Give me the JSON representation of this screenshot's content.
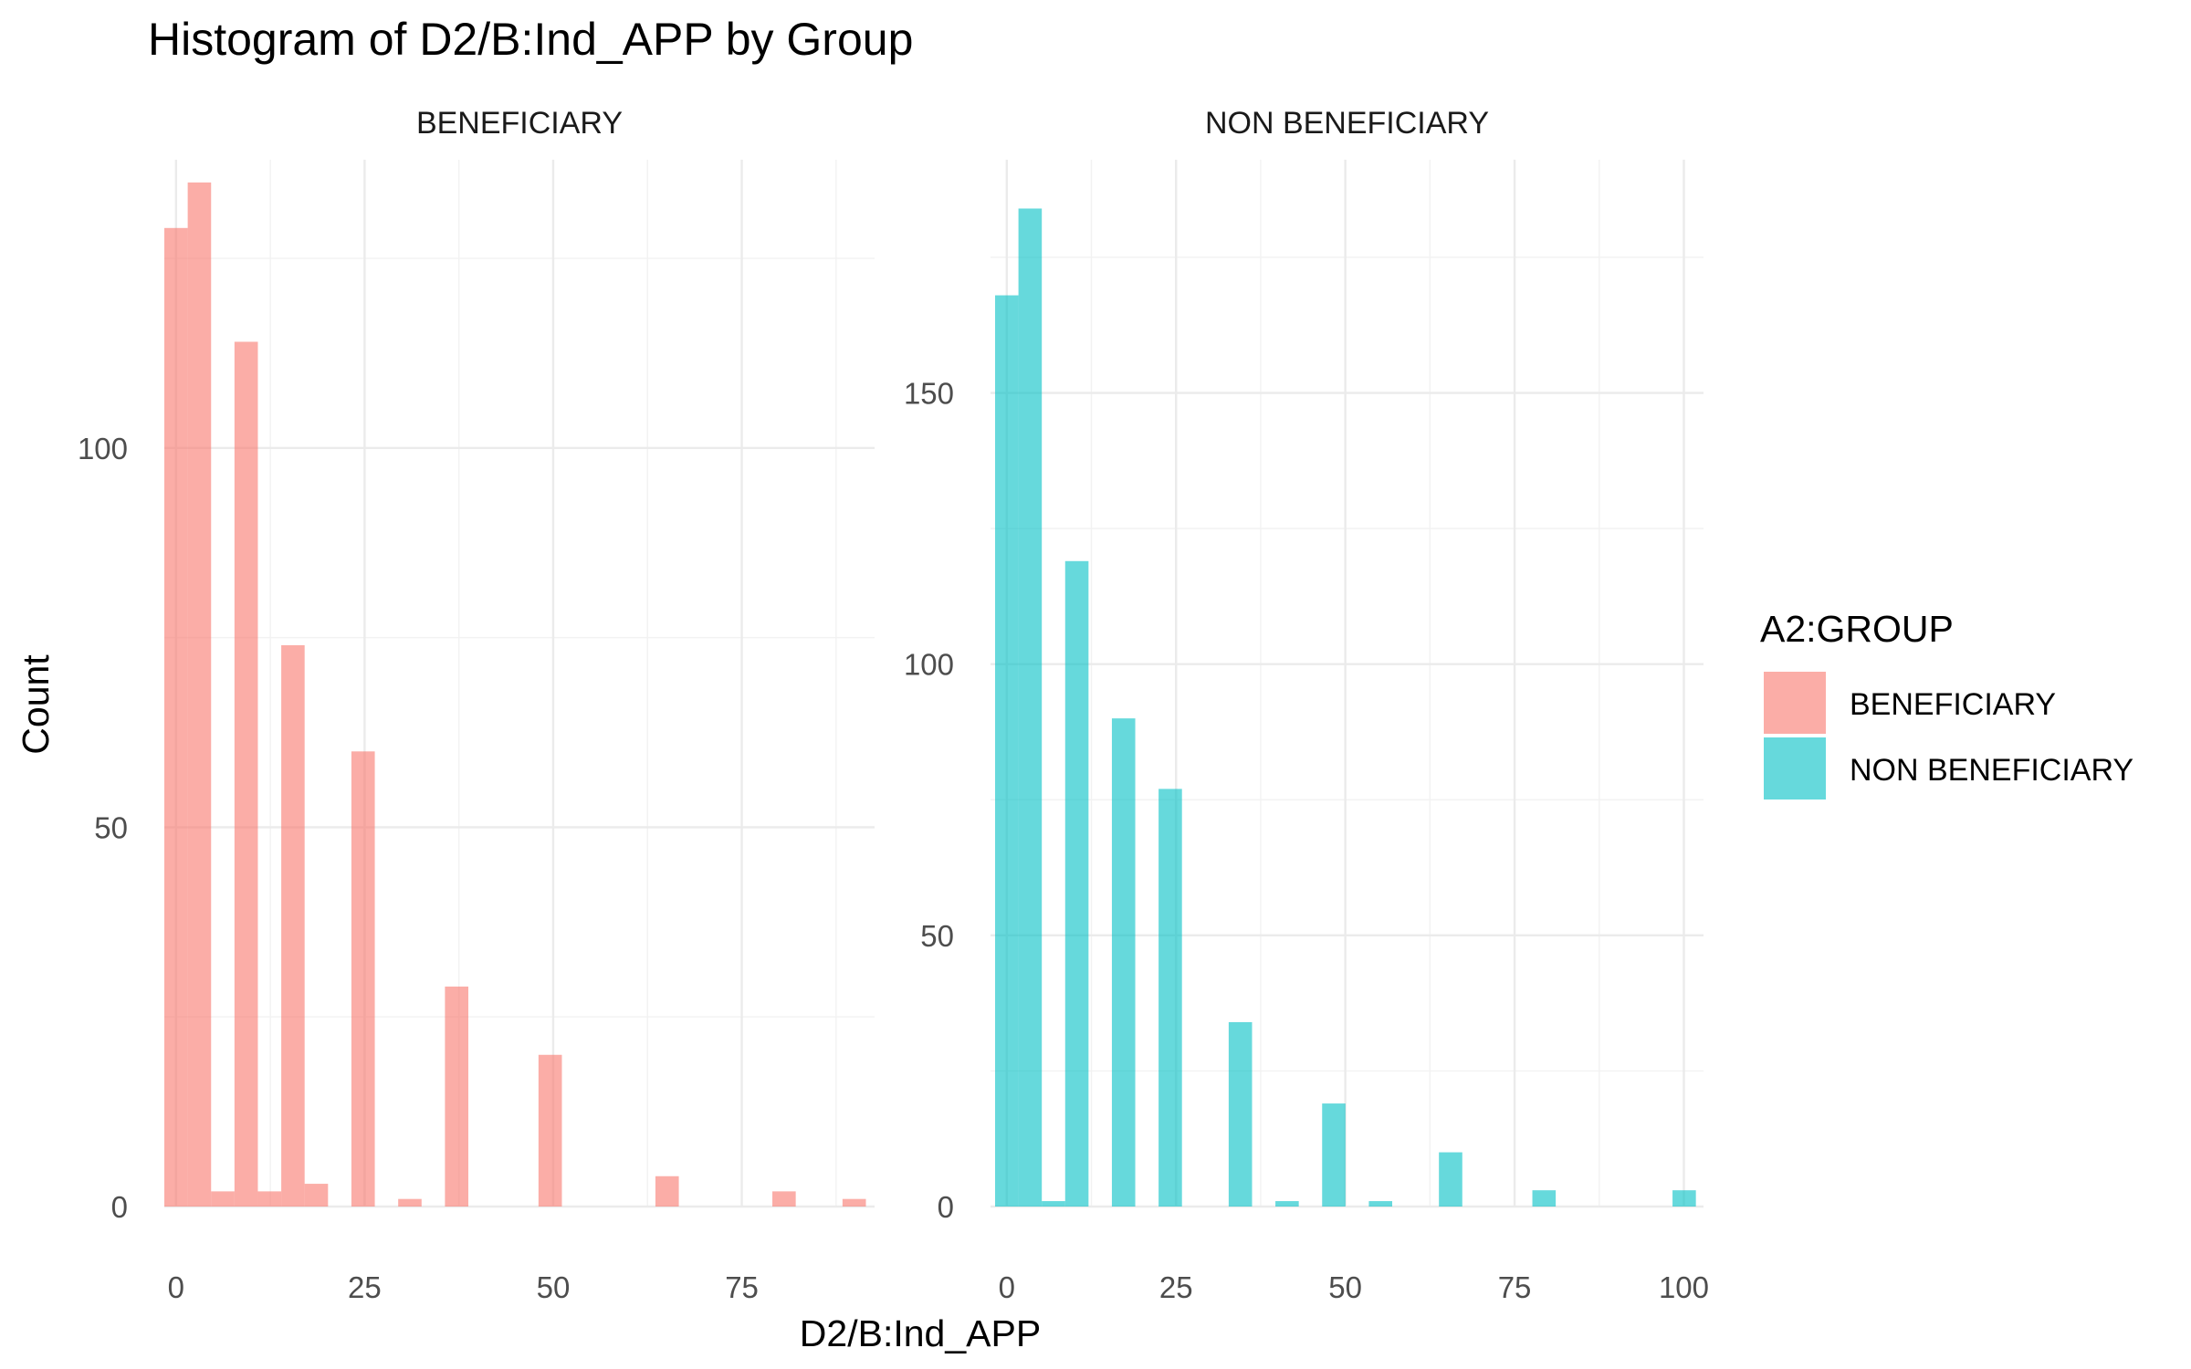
{
  "chart_data": {
    "type": "bar",
    "title": "Histogram of D2/B:Ind_APP by Group",
    "xlabel": "D2/B:Ind_APP",
    "ylabel": "Count",
    "grid": true,
    "legend": {
      "title": "A2:GROUP",
      "position": "right",
      "entries": [
        {
          "label": "BENEFICIARY",
          "color": "#F8766D"
        },
        {
          "label": "NON BENEFICIARY",
          "color": "#00BFC4"
        }
      ]
    },
    "facets": [
      {
        "label": "BENEFICIARY",
        "color": "#F8766D",
        "bin_width": 3.1,
        "xlim": [
          -1.55,
          92.6
        ],
        "ylim": [
          0,
          138
        ],
        "x_ticks": [
          0,
          25,
          50,
          75
        ],
        "y_ticks": [
          0,
          50,
          100
        ],
        "bins": [
          {
            "x": 0,
            "count": 129
          },
          {
            "x": 3.1,
            "count": 135
          },
          {
            "x": 6.2,
            "count": 2
          },
          {
            "x": 9.3,
            "count": 114
          },
          {
            "x": 12.4,
            "count": 2
          },
          {
            "x": 15.5,
            "count": 74
          },
          {
            "x": 18.6,
            "count": 3
          },
          {
            "x": 24.8,
            "count": 60
          },
          {
            "x": 31.0,
            "count": 1
          },
          {
            "x": 37.2,
            "count": 29
          },
          {
            "x": 49.6,
            "count": 20
          },
          {
            "x": 65.1,
            "count": 4
          },
          {
            "x": 80.6,
            "count": 2
          },
          {
            "x": 89.9,
            "count": 1
          }
        ]
      },
      {
        "label": "NON BENEFICIARY",
        "color": "#00BFC4",
        "bin_width": 3.45,
        "xlim": [
          -2.4,
          102.9
        ],
        "ylim": [
          0,
          193
        ],
        "x_ticks": [
          0,
          25,
          50,
          75,
          100
        ],
        "y_ticks": [
          0,
          50,
          100,
          150
        ],
        "bins": [
          {
            "x": 0,
            "count": 168
          },
          {
            "x": 3.45,
            "count": 184
          },
          {
            "x": 6.9,
            "count": 1
          },
          {
            "x": 10.35,
            "count": 119
          },
          {
            "x": 17.25,
            "count": 90
          },
          {
            "x": 24.15,
            "count": 77
          },
          {
            "x": 34.5,
            "count": 34
          },
          {
            "x": 41.4,
            "count": 1
          },
          {
            "x": 48.3,
            "count": 19
          },
          {
            "x": 55.2,
            "count": 1
          },
          {
            "x": 65.55,
            "count": 10
          },
          {
            "x": 79.35,
            "count": 3
          },
          {
            "x": 100.05,
            "count": 3
          }
        ]
      }
    ]
  }
}
